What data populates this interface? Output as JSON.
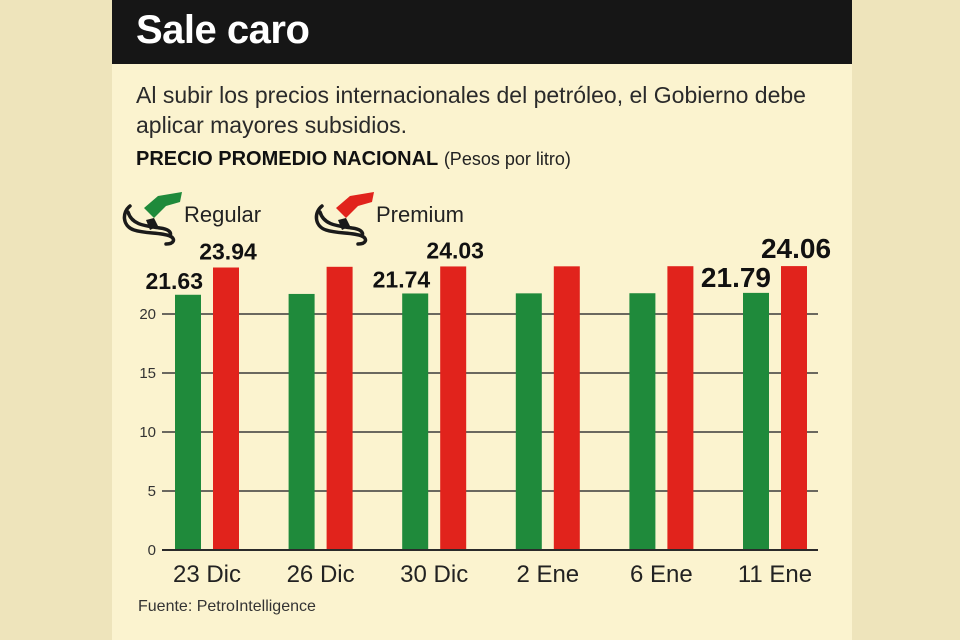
{
  "title": "Sale caro",
  "subtitle": "Al subir los precios internacionales del petróleo, el Gobierno debe aplicar mayores subsidios.",
  "heading": "PRECIO PROMEDIO NACIONAL",
  "heading_unit": "(Pesos por litro)",
  "source": "Fuente: PetroIntelligence",
  "legend": [
    {
      "label": "Regular",
      "color": "#1f8a3b",
      "icon": "fuel-nozzle-icon"
    },
    {
      "label": "Premium",
      "color": "#e1231c",
      "icon": "fuel-nozzle-icon"
    }
  ],
  "chart_data": {
    "type": "bar",
    "categories": [
      "23 Dic",
      "26 Dic",
      "30 Dic",
      "2 Ene",
      "6 Ene",
      "11 Ene"
    ],
    "series": [
      {
        "name": "Regular",
        "color": "#1f8a3b",
        "values": [
          21.63,
          21.7,
          21.74,
          21.75,
          21.76,
          21.79
        ]
      },
      {
        "name": "Premium",
        "color": "#e1231c",
        "values": [
          23.94,
          24.0,
          24.03,
          24.04,
          24.05,
          24.06
        ]
      }
    ],
    "data_labels": [
      {
        "category_index": 0,
        "series_index": 0,
        "text": "21.63"
      },
      {
        "category_index": 0,
        "series_index": 1,
        "text": "23.94"
      },
      {
        "category_index": 2,
        "series_index": 0,
        "text": "21.74"
      },
      {
        "category_index": 2,
        "series_index": 1,
        "text": "24.03"
      },
      {
        "category_index": 5,
        "series_index": 0,
        "text": "21.79"
      },
      {
        "category_index": 5,
        "series_index": 1,
        "text": "24.06"
      }
    ],
    "y_ticks": [
      0,
      5,
      10,
      15,
      20
    ],
    "ylim": [
      0,
      25
    ],
    "grid": true
  }
}
